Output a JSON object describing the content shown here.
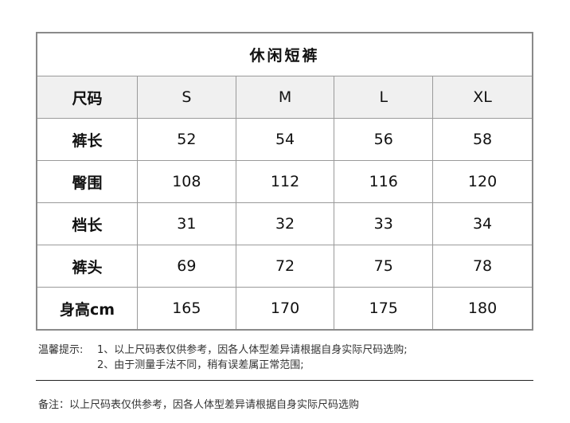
{
  "table": {
    "title": "休闲短裤",
    "header": [
      "尺码",
      "S",
      "M",
      "L",
      "XL"
    ],
    "rows": [
      [
        "裤长",
        "52",
        "54",
        "56",
        "58"
      ],
      [
        "臀围",
        "108",
        "112",
        "116",
        "120"
      ],
      [
        "档长",
        "31",
        "32",
        "33",
        "34"
      ],
      [
        "裤头",
        "69",
        "72",
        "75",
        "78"
      ],
      [
        "身高cm",
        "165",
        "170",
        "175",
        "180"
      ]
    ]
  },
  "tips": {
    "label": "温馨提示:",
    "line1": "1、以上尺码表仅供参考，因各人体型差异请根据自身实际尺码选购;",
    "line2": "2、由于测量手法不同，稍有误差属正常范围;"
  },
  "remark": "备注：以上尺码表仅供参考，因各人体型差异请根据自身实际尺码选购"
}
